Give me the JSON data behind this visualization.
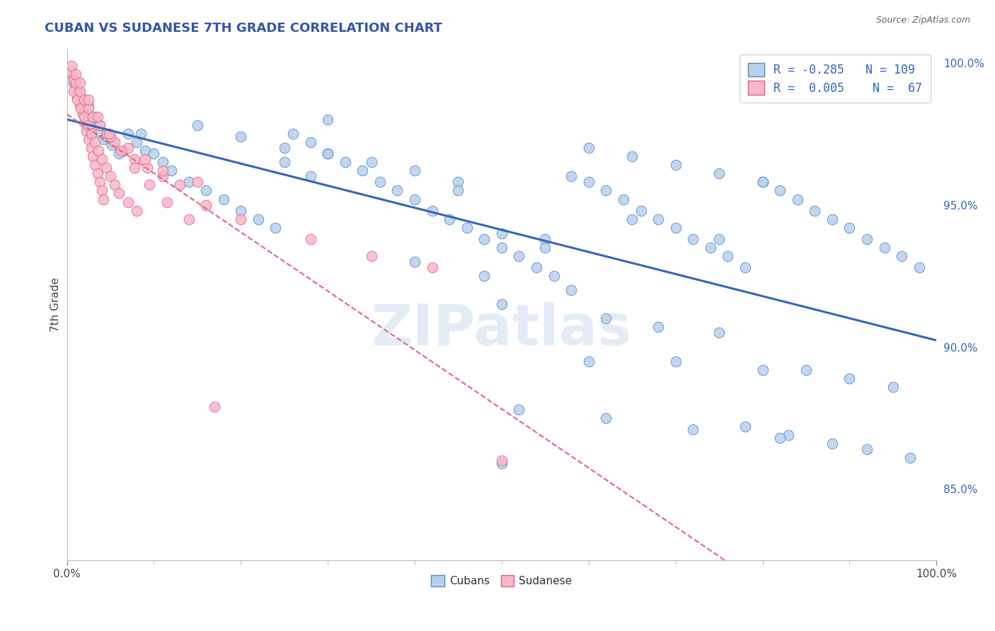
{
  "title": "CUBAN VS SUDANESE 7TH GRADE CORRELATION CHART",
  "source_text": "Source: ZipAtlas.com",
  "ylabel": "7th Grade",
  "xlim": [
    0,
    1
  ],
  "ylim": [
    0.825,
    1.005
  ],
  "right_yticks": [
    0.85,
    0.9,
    0.95,
    1.0
  ],
  "right_yticklabels": [
    "85.0%",
    "90.0%",
    "95.0%",
    "100.0%"
  ],
  "xticklabels": [
    "0.0%",
    "100.0%"
  ],
  "xtick_positions": [
    0.0,
    1.0
  ],
  "watermark": "ZIPatlas",
  "legend_R_cubans": "-0.285",
  "legend_N_cubans": "109",
  "legend_R_sudanese": "0.005",
  "legend_N_sudanese": "67",
  "blue_fill": "#b8d0ea",
  "blue_edge": "#5588cc",
  "pink_fill": "#f8b8c8",
  "pink_edge": "#e06080",
  "blue_line_color": "#3366bb",
  "pink_line_color": "#dd6688",
  "background_color": "#ffffff",
  "grid_color": "#cccccc",
  "blue_x": [
    0.008,
    0.012,
    0.018,
    0.022,
    0.028,
    0.035,
    0.042,
    0.005,
    0.015,
    0.025,
    0.032,
    0.038,
    0.045,
    0.052,
    0.06,
    0.07,
    0.08,
    0.09,
    0.1,
    0.11,
    0.12,
    0.14,
    0.16,
    0.18,
    0.2,
    0.22,
    0.24,
    0.26,
    0.28,
    0.3,
    0.32,
    0.34,
    0.36,
    0.38,
    0.4,
    0.42,
    0.44,
    0.46,
    0.48,
    0.5,
    0.52,
    0.54,
    0.56,
    0.58,
    0.6,
    0.62,
    0.64,
    0.66,
    0.68,
    0.7,
    0.72,
    0.74,
    0.76,
    0.78,
    0.8,
    0.82,
    0.84,
    0.86,
    0.88,
    0.9,
    0.92,
    0.94,
    0.96,
    0.98,
    0.25,
    0.3,
    0.35,
    0.4,
    0.45,
    0.5,
    0.55,
    0.6,
    0.65,
    0.7,
    0.75,
    0.8,
    0.085,
    0.28,
    0.15,
    0.2,
    0.5,
    0.62,
    0.68,
    0.75,
    0.58,
    0.48,
    0.4,
    0.85,
    0.9,
    0.95,
    0.5,
    0.78,
    0.83,
    0.88,
    0.3,
    0.6,
    0.7,
    0.8,
    0.25,
    0.45,
    0.55,
    0.65,
    0.75,
    0.52,
    0.62,
    0.72,
    0.82,
    0.92,
    0.97
  ],
  "blue_y": [
    0.993,
    0.99,
    0.986,
    0.983,
    0.98,
    0.976,
    0.973,
    0.996,
    0.989,
    0.985,
    0.981,
    0.978,
    0.974,
    0.971,
    0.968,
    0.975,
    0.972,
    0.969,
    0.968,
    0.965,
    0.962,
    0.958,
    0.955,
    0.952,
    0.948,
    0.945,
    0.942,
    0.975,
    0.972,
    0.968,
    0.965,
    0.962,
    0.958,
    0.955,
    0.952,
    0.948,
    0.945,
    0.942,
    0.938,
    0.935,
    0.932,
    0.928,
    0.925,
    0.96,
    0.958,
    0.955,
    0.952,
    0.948,
    0.945,
    0.942,
    0.938,
    0.935,
    0.932,
    0.928,
    0.958,
    0.955,
    0.952,
    0.948,
    0.945,
    0.942,
    0.938,
    0.935,
    0.932,
    0.928,
    0.97,
    0.968,
    0.965,
    0.962,
    0.958,
    0.94,
    0.938,
    0.97,
    0.967,
    0.964,
    0.961,
    0.958,
    0.975,
    0.96,
    0.978,
    0.974,
    0.915,
    0.91,
    0.907,
    0.905,
    0.92,
    0.925,
    0.93,
    0.892,
    0.889,
    0.886,
    0.859,
    0.872,
    0.869,
    0.866,
    0.98,
    0.895,
    0.895,
    0.892,
    0.965,
    0.955,
    0.935,
    0.945,
    0.938,
    0.878,
    0.875,
    0.871,
    0.868,
    0.864,
    0.861
  ],
  "pink_x": [
    0.005,
    0.008,
    0.01,
    0.012,
    0.015,
    0.018,
    0.02,
    0.022,
    0.025,
    0.028,
    0.03,
    0.032,
    0.035,
    0.038,
    0.04,
    0.042,
    0.008,
    0.012,
    0.016,
    0.02,
    0.024,
    0.028,
    0.032,
    0.036,
    0.04,
    0.045,
    0.05,
    0.055,
    0.06,
    0.07,
    0.08,
    0.01,
    0.015,
    0.02,
    0.025,
    0.03,
    0.038,
    0.046,
    0.055,
    0.065,
    0.078,
    0.092,
    0.11,
    0.13,
    0.16,
    0.05,
    0.07,
    0.09,
    0.11,
    0.15,
    0.2,
    0.28,
    0.35,
    0.42,
    0.5,
    0.005,
    0.01,
    0.015,
    0.025,
    0.035,
    0.048,
    0.062,
    0.078,
    0.095,
    0.115,
    0.14,
    0.17
  ],
  "pink_y": [
    0.997,
    0.994,
    0.991,
    0.988,
    0.985,
    0.982,
    0.979,
    0.976,
    0.973,
    0.97,
    0.967,
    0.964,
    0.961,
    0.958,
    0.955,
    0.952,
    0.99,
    0.987,
    0.984,
    0.981,
    0.978,
    0.975,
    0.972,
    0.969,
    0.966,
    0.963,
    0.96,
    0.957,
    0.954,
    0.951,
    0.948,
    0.993,
    0.99,
    0.987,
    0.984,
    0.981,
    0.978,
    0.975,
    0.972,
    0.969,
    0.966,
    0.963,
    0.96,
    0.957,
    0.95,
    0.974,
    0.97,
    0.966,
    0.962,
    0.958,
    0.945,
    0.938,
    0.932,
    0.928,
    0.86,
    0.999,
    0.996,
    0.993,
    0.987,
    0.981,
    0.975,
    0.969,
    0.963,
    0.957,
    0.951,
    0.945,
    0.879
  ]
}
